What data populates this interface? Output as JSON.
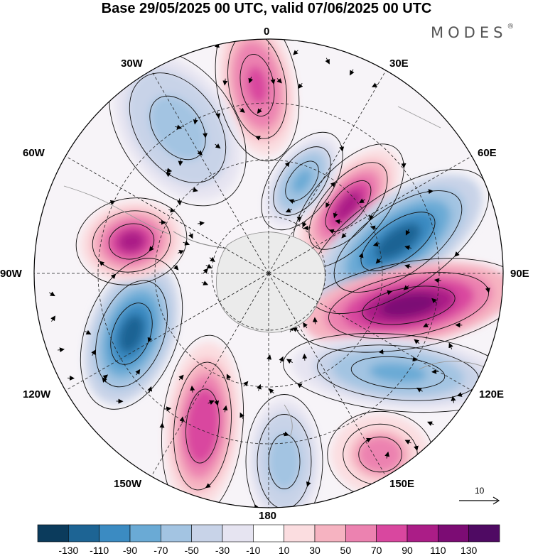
{
  "title": "Base 29/05/2025 00 UTC, valid 07/06/2025 00 UTC",
  "logo": "MODES",
  "logo_mark": "®",
  "longitude_labels": {
    "lon_0": "0",
    "lon_30e": "30E",
    "lon_60e": "60E",
    "lon_90e": "90E",
    "lon_120e": "120E",
    "lon_150e": "150E",
    "lon_180": "180",
    "lon_150w": "150W",
    "lon_120w": "120W",
    "lon_90w": "90W",
    "lon_60w": "60W",
    "lon_30w": "30W"
  },
  "reference_vector": {
    "label": "10"
  },
  "colorbar": {
    "colors": [
      "#0b3b5c",
      "#1d6494",
      "#3b8bc2",
      "#6aaad5",
      "#a3c4e2",
      "#c8d3e8",
      "#e6e4f1",
      "#ffffff",
      "#fbdde0",
      "#f6b3c1",
      "#ec82b0",
      "#d9479f",
      "#ab1d87",
      "#7c0c74",
      "#4f0a63"
    ],
    "labels": [
      "-130",
      "-110",
      "-90",
      "-70",
      "-50",
      "-30",
      "-10",
      "10",
      "30",
      "50",
      "70",
      "90",
      "110",
      "130"
    ]
  },
  "map": {
    "projection": "south-polar-stereographic",
    "anomaly_centers": [
      {
        "id": "south-atlantic-high",
        "sign": "positive",
        "value": 80
      },
      {
        "id": "weddell-low",
        "sign": "negative",
        "value": -60
      },
      {
        "id": "indian-high",
        "sign": "positive",
        "value": 100
      },
      {
        "id": "indian-low",
        "sign": "negative",
        "value": -120
      },
      {
        "id": "east-indian-high",
        "sign": "positive",
        "value": 120
      },
      {
        "id": "australia-low",
        "sign": "negative",
        "value": -80
      },
      {
        "id": "tasman-high",
        "sign": "positive",
        "value": 60
      },
      {
        "id": "ross-low",
        "sign": "negative",
        "value": -60
      },
      {
        "id": "pacific-high",
        "sign": "positive",
        "value": 90
      },
      {
        "id": "amundsen-low",
        "sign": "negative",
        "value": -120
      },
      {
        "id": "drake-high",
        "sign": "positive",
        "value": 100
      },
      {
        "id": "falkland-low",
        "sign": "negative",
        "value": -80
      }
    ]
  }
}
